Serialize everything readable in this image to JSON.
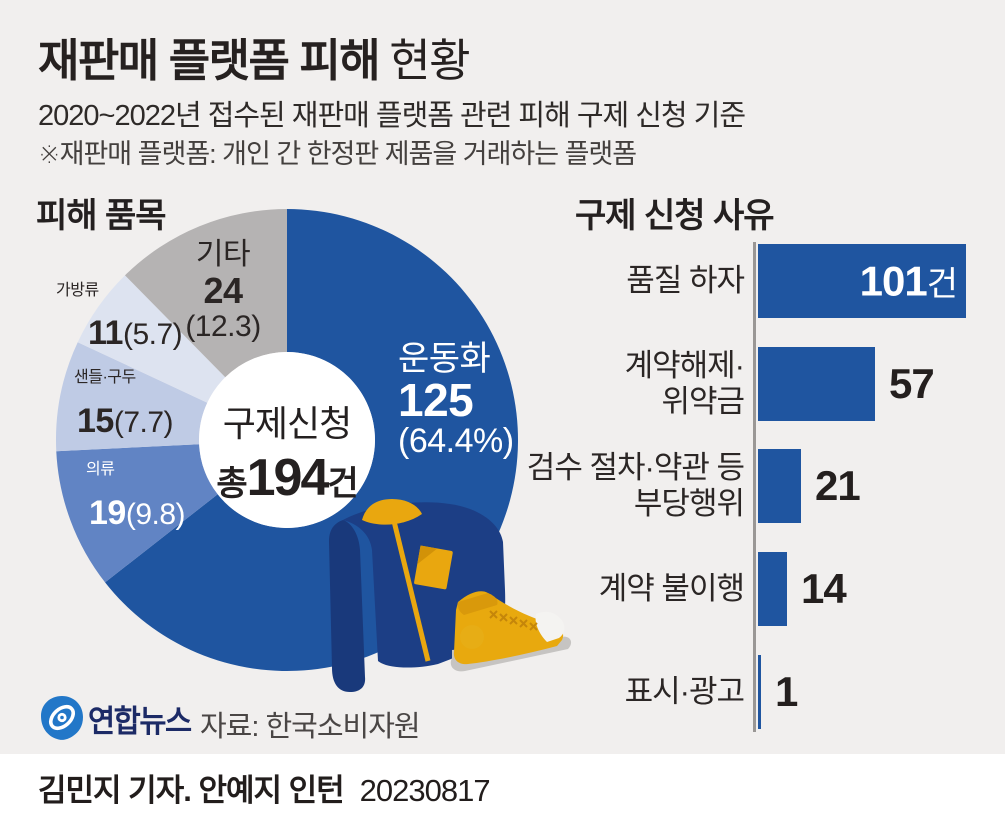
{
  "header": {
    "title_bold": "재판매 플랫폼 피해",
    "title_light": "현황",
    "subtitle": "2020~2022년 접수된 재판매 플랫폼 관련 피해 구제 신청 기준",
    "note": "※재판매 플랫폼: 개인 간 한정판 제품을 거래하는 플랫폼"
  },
  "pie_section": {
    "heading": "피해 품목"
  },
  "bar_section": {
    "heading": "구제 신청 사유"
  },
  "chart_data": [
    {
      "type": "pie",
      "title": "피해 품목",
      "total": 194,
      "start_angle_deg": 0,
      "clockwise": true,
      "donut": true,
      "slices": [
        {
          "label": "운동화",
          "value": 125,
          "pct": 64.4,
          "value_display": "125",
          "pct_display": "(64.4%)",
          "color": "#1f55a0",
          "text_color": "#ffffff"
        },
        {
          "label": "의류",
          "value": 19,
          "pct": 9.8,
          "value_display": "19",
          "pct_display": "(9.8)",
          "color": "#6184c4",
          "text_color": "#ffffff"
        },
        {
          "label": "샌들·구두",
          "value": 15,
          "pct": 7.7,
          "value_display": "15",
          "pct_display": "(7.7)",
          "color": "#bfcbe5",
          "text_color": "#2b2625"
        },
        {
          "label": "가방류",
          "value": 11,
          "pct": 5.7,
          "value_display": "11",
          "pct_display": "(5.7)",
          "color": "#dde3f0",
          "text_color": "#2b2625"
        },
        {
          "label": "기타",
          "value": 24,
          "pct": 12.3,
          "value_display": "24",
          "pct_display": "(12.3)",
          "color": "#b5b3b3",
          "text_color": "#2b2625"
        }
      ],
      "center": {
        "line1": "구제신청",
        "prefix": "총",
        "total_display": "194",
        "suffix": "건"
      }
    },
    {
      "type": "bar",
      "title": "구제 신청 사유",
      "orientation": "horizontal",
      "categories": [
        "품질 하자",
        "계약해제·위약금",
        "검수 절차·약관 등 부당행위",
        "계약 불이행",
        "표시·광고"
      ],
      "values": [
        101,
        57,
        21,
        14,
        1
      ],
      "value_unit": "건",
      "bar_color": "#1f55a0",
      "items": [
        {
          "label_lines": [
            "품질 하자"
          ],
          "value": 101,
          "value_display": "101",
          "suffix": "건",
          "value_inside": true
        },
        {
          "label_lines": [
            "계약해제·",
            "위약금"
          ],
          "value": 57,
          "value_display": "57"
        },
        {
          "label_lines": [
            "검수 절차·약관 등",
            "부당행위"
          ],
          "value": 21,
          "value_display": "21"
        },
        {
          "label_lines": [
            "계약 불이행"
          ],
          "value": 14,
          "value_display": "14"
        },
        {
          "label_lines": [
            "표시·광고"
          ],
          "value": 1,
          "value_display": "1"
        }
      ]
    }
  ],
  "footer": {
    "logo_text": "연합뉴스",
    "source": "자료: 한국소비자원",
    "credit": "김민지 기자. 안예지 인턴",
    "date": "20230817"
  },
  "colors": {
    "accent_blue": "#1f55a0",
    "background": "#f1efee",
    "axis": "#9a9795",
    "logo_blue": "#2277c8",
    "logo_navy": "#1c2a66"
  }
}
